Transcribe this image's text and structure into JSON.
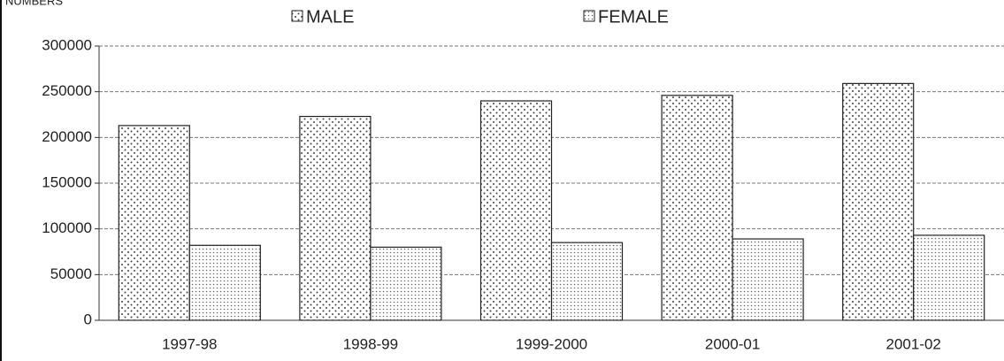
{
  "chart_data": {
    "type": "bar",
    "y_label": "NUMBERS",
    "categories": [
      "1997-98",
      "1998-99",
      "1999-2000",
      "2000-01",
      "2001-02"
    ],
    "series": [
      {
        "name": "MALE",
        "color": "#444444",
        "values": [
          213000,
          223000,
          240000,
          246000,
          259000
        ]
      },
      {
        "name": "FEMALE",
        "color": "#666666",
        "values": [
          82000,
          80000,
          85000,
          89000,
          93000
        ]
      }
    ],
    "ylim": [
      0,
      300000
    ],
    "yticks": [
      0,
      50000,
      100000,
      150000,
      200000,
      250000,
      300000
    ],
    "grid": true
  }
}
